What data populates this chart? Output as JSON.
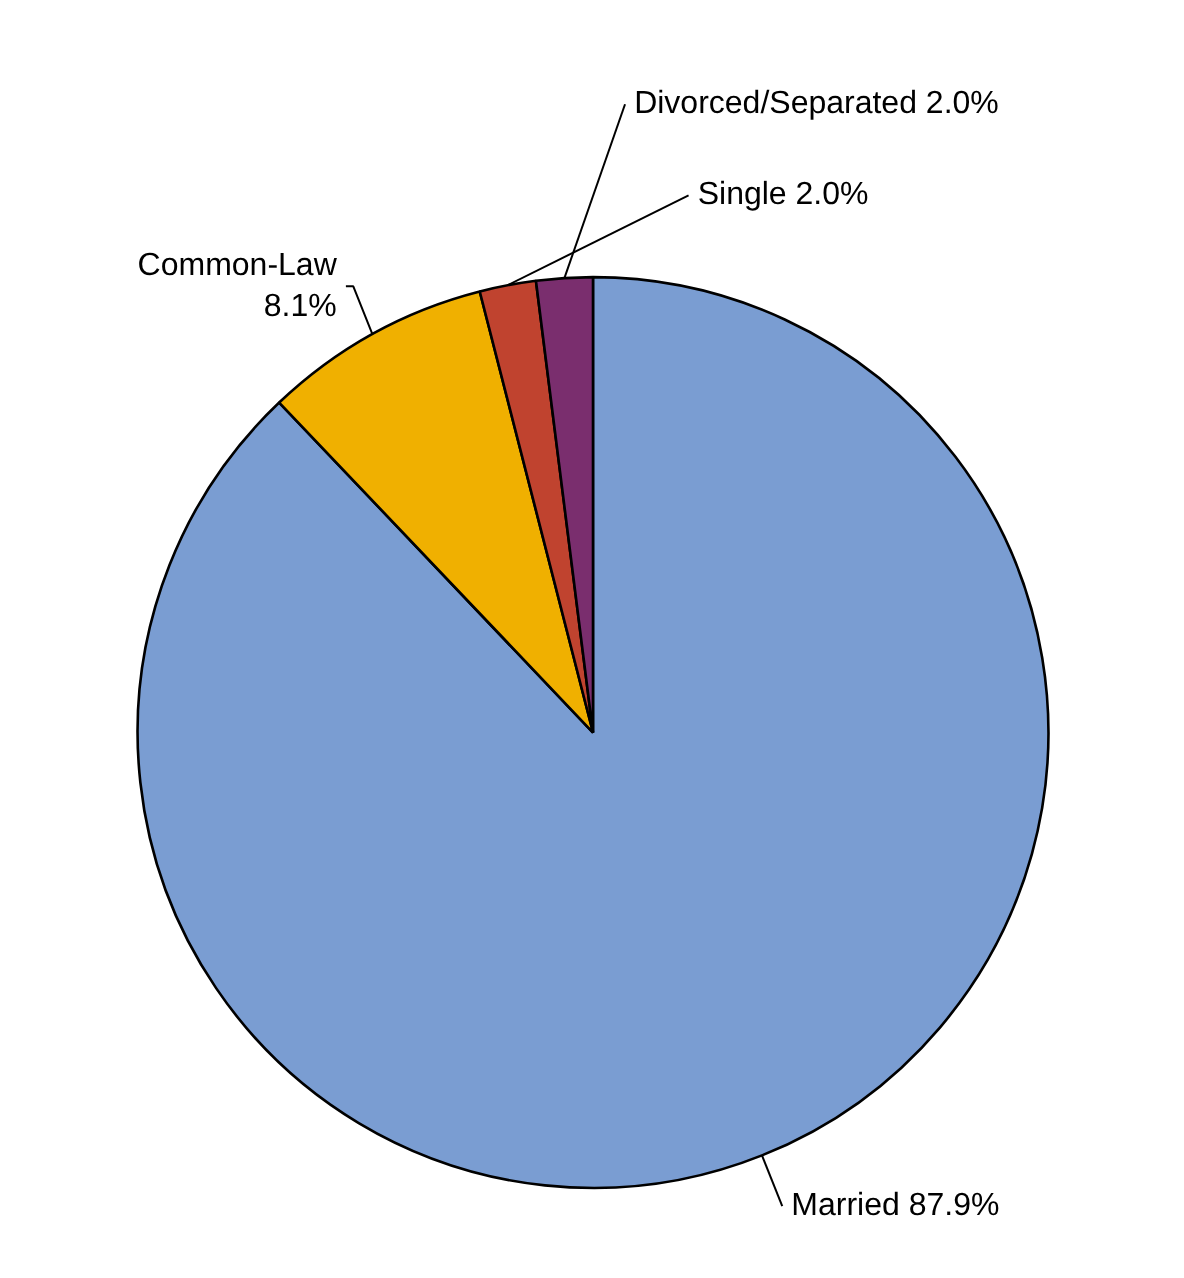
{
  "chart_data": {
    "type": "pie",
    "categories": [
      "Married",
      "Common-Law",
      "Single",
      "Divorced/Separated"
    ],
    "values": [
      87.9,
      8.1,
      2.0,
      2.0
    ],
    "colors": [
      "#7a9dd2",
      "#f0b000",
      "#c0432f",
      "#7a2e6e"
    ],
    "value_labels": [
      "87.9%",
      "8.1%",
      "2.0%",
      "2.0%"
    ]
  }
}
